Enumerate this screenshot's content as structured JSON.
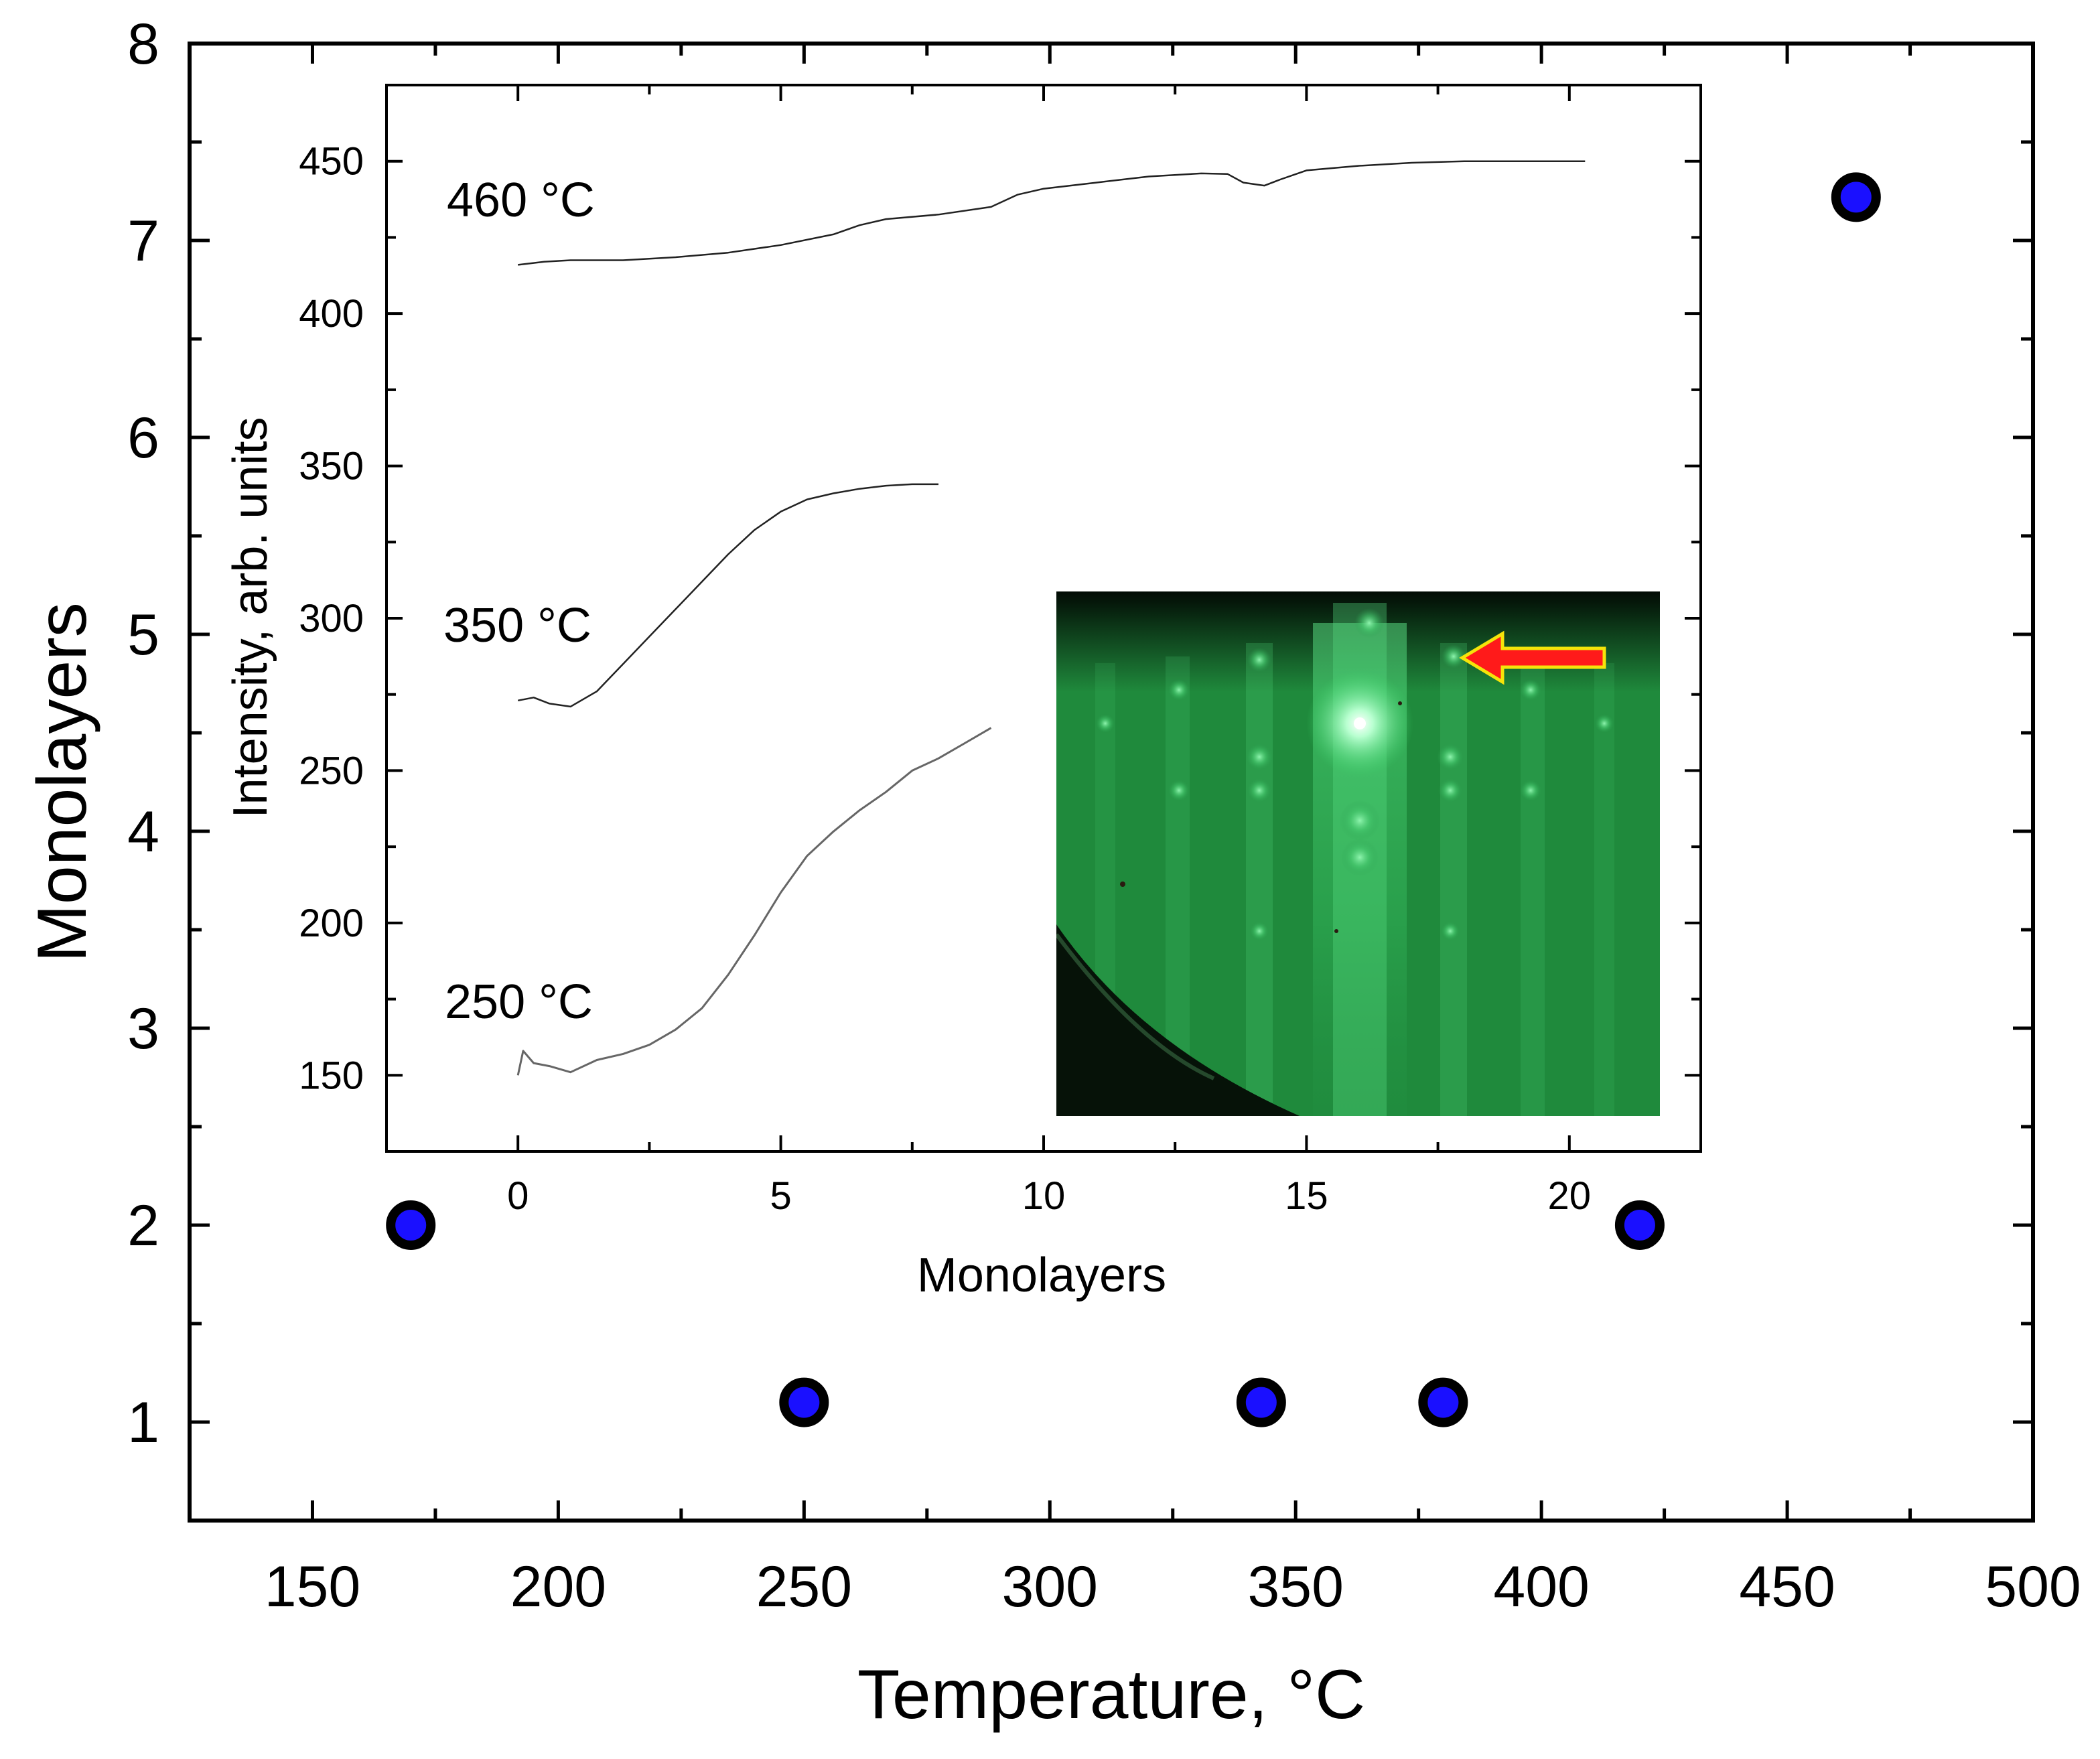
{
  "chart_data": [
    {
      "type": "scatter",
      "xlabel": "Temperature, °C",
      "ylabel": "Monolayers",
      "xlim": [
        125,
        500
      ],
      "ylim": [
        0.5,
        8
      ],
      "xticks": [
        150,
        200,
        250,
        300,
        350,
        400,
        450,
        500
      ],
      "yticks": [
        1,
        2,
        3,
        4,
        5,
        6,
        7,
        8
      ],
      "grid": false,
      "marker": {
        "fill": "#1a10ff",
        "edge": "#000000"
      },
      "series": [
        {
          "x": [
            170,
            250,
            343,
            380,
            420,
            464
          ],
          "y": [
            2,
            1.1,
            1.1,
            1.1,
            2,
            7.22
          ]
        }
      ]
    },
    {
      "type": "line",
      "xlabel": "Monolayers",
      "ylabel": "Intensity, arb. units",
      "xlim": [
        -2.5,
        22.5
      ],
      "ylim": [
        125,
        475
      ],
      "xticks": [
        0,
        5,
        10,
        15,
        20
      ],
      "yticks": [
        150,
        200,
        250,
        300,
        350,
        400,
        450
      ],
      "grid": false,
      "series": [
        {
          "label": "460 °C",
          "color": "#222222",
          "x": [
            0,
            0.5,
            1,
            2,
            3,
            4,
            5,
            6,
            6.5,
            7,
            8,
            9,
            9.5,
            10,
            11,
            12,
            13,
            13.5,
            13.8,
            14.2,
            14.5,
            15,
            16,
            17,
            18,
            19,
            20,
            20.3
          ],
          "y": [
            416,
            417,
            417.5,
            417.5,
            418.5,
            420,
            422.5,
            426,
            429,
            431,
            432.5,
            435,
            439,
            441,
            443,
            445,
            446,
            445.8,
            443,
            442,
            444,
            447,
            448.5,
            449.5,
            450,
            450,
            450,
            450
          ]
        },
        {
          "label": "350 °C",
          "color": "#222222",
          "x": [
            0,
            0.3,
            0.6,
            1,
            1.5,
            2,
            2.5,
            3,
            3.5,
            4,
            4.5,
            5,
            5.5,
            6,
            6.5,
            7,
            7.5,
            8
          ],
          "y": [
            273,
            274,
            272,
            271,
            276,
            285,
            294,
            303,
            312,
            321,
            329,
            335,
            339,
            341,
            342.5,
            343.5,
            344,
            344
          ]
        },
        {
          "label": "250 °C",
          "color": "#666666",
          "x": [
            0,
            0.1,
            0.3,
            0.6,
            1,
            1.5,
            2,
            2.5,
            3,
            3.5,
            4,
            4.5,
            5,
            5.5,
            6,
            6.5,
            7,
            7.5,
            8,
            8.5,
            9
          ],
          "y": [
            150,
            158,
            154,
            153,
            151,
            155,
            157,
            160,
            165,
            172,
            183,
            196,
            210,
            222,
            230,
            237,
            243,
            250,
            254,
            259,
            264
          ]
        }
      ]
    }
  ]
}
